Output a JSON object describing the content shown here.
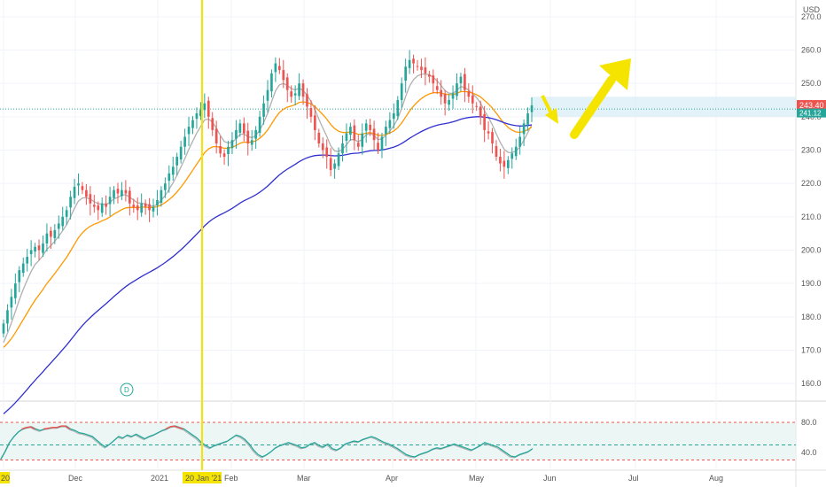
{
  "chart_data": {
    "type": "candlestick",
    "currency": "USD",
    "price_axis": {
      "range": [
        155,
        275
      ],
      "ticks": [
        160,
        170,
        180,
        190,
        200,
        210,
        220,
        230,
        240,
        250,
        260,
        270
      ]
    },
    "x_axis_labels": [
      "20",
      "Dec",
      "2021",
      "20 Jan '21",
      "Feb",
      "Mar",
      "Apr",
      "May",
      "Jun",
      "Jul",
      "Aug"
    ],
    "last_price_label": "243.40",
    "second_price_label": "241.12",
    "current_price_line": 242.3,
    "marked_date_label": "20 Jan '21",
    "badge_label": "D",
    "series": [
      {
        "name": "price",
        "color_up": "#26a69a",
        "color_down": "#ef5350",
        "closes": [
          178,
          182,
          186,
          190,
          194,
          196,
          198,
          200,
          201,
          200,
          202,
          205,
          204,
          206,
          208,
          210,
          212,
          216,
          219,
          220,
          218,
          216,
          214,
          213,
          212,
          214,
          213,
          216,
          218,
          217,
          218,
          217,
          214,
          213,
          212,
          214,
          213,
          212,
          213,
          215,
          218,
          220,
          223,
          225,
          228,
          231,
          234,
          237,
          239,
          241,
          242,
          244,
          240,
          236,
          232,
          229,
          228,
          231,
          233,
          236,
          238,
          235,
          232,
          233,
          236,
          240,
          244,
          248,
          253,
          256,
          254,
          251,
          248,
          246,
          247,
          250,
          246,
          243,
          240,
          236,
          232,
          230,
          228,
          224,
          226,
          229,
          232,
          235,
          237,
          233,
          231,
          235,
          238,
          236,
          233,
          230,
          234,
          237,
          239,
          241,
          245,
          250,
          255,
          257,
          256,
          255,
          254,
          253,
          252,
          250,
          248,
          246,
          244,
          245,
          247,
          250,
          252,
          248,
          246,
          244,
          243,
          240,
          236,
          235,
          232,
          228,
          226,
          225,
          227,
          229,
          231,
          234,
          238,
          241,
          243.4
        ]
      },
      {
        "name": "EMA short",
        "color": "#b0b0b0"
      },
      {
        "name": "EMA medium",
        "color": "#ff9800"
      },
      {
        "name": "EMA long",
        "color": "#3030d0"
      },
      {
        "name": "RSI",
        "color": "#26a69a",
        "values": [
          30,
          40,
          52,
          60,
          66,
          70,
          72,
          73,
          70,
          68,
          70,
          71,
          72,
          72,
          74,
          74,
          70,
          68,
          65,
          64,
          62,
          60,
          55,
          50,
          46,
          50,
          55,
          60,
          58,
          62,
          60,
          63,
          60,
          57,
          60,
          62,
          65,
          68,
          70,
          73,
          74,
          72,
          70,
          66,
          62,
          58,
          52,
          48,
          45,
          48,
          50,
          52,
          54,
          58,
          62,
          60,
          56,
          50,
          42,
          36,
          33,
          36,
          40,
          45,
          48,
          50,
          52,
          50,
          48,
          45,
          46,
          50,
          52,
          48,
          46,
          50,
          44,
          42,
          45,
          50,
          52,
          54,
          53,
          56,
          58,
          60,
          58,
          55,
          52,
          50,
          47,
          44,
          40,
          36,
          34,
          33,
          36,
          38,
          40,
          43,
          45,
          44,
          46,
          48,
          50,
          48,
          46,
          44,
          42,
          45,
          48,
          52,
          50,
          48,
          46,
          42,
          38,
          34,
          33,
          36,
          38,
          40,
          44
        ]
      }
    ],
    "rsi_axis": {
      "ticks": [
        40.0,
        80.0
      ],
      "upper_band": 80,
      "lower_band": 30,
      "mid": 50
    },
    "annotations": [
      {
        "type": "vertical-line",
        "color": "#f5e400",
        "label": "20 Jan '21"
      },
      {
        "type": "arrow",
        "direction": "down-right",
        "color": "#f5e400"
      },
      {
        "type": "arrow",
        "direction": "up-right",
        "color": "#f5e400"
      },
      {
        "type": "zone",
        "from": 240,
        "to": 246
      }
    ]
  }
}
